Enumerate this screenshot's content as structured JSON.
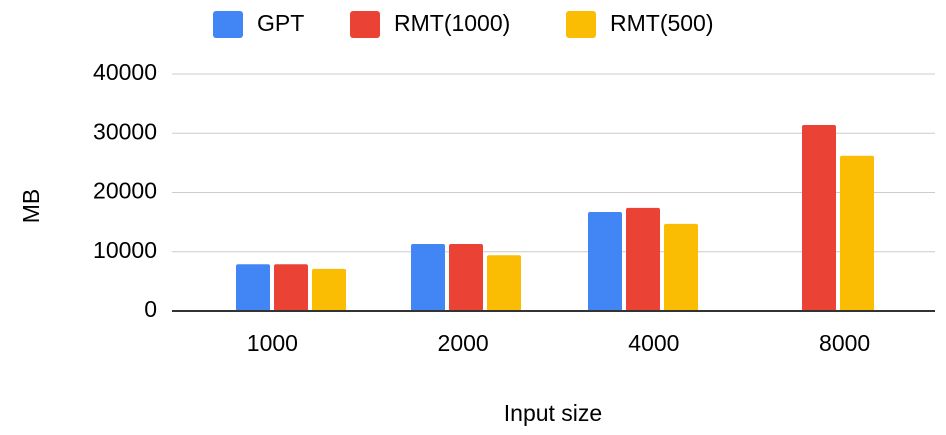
{
  "chart_data": {
    "type": "bar",
    "categories": [
      "1000",
      "2000",
      "4000",
      "8000"
    ],
    "series": [
      {
        "name": "GPT",
        "color": "#4285f4",
        "values": [
          7900,
          11300,
          16700,
          null
        ]
      },
      {
        "name": "RMT(1000)",
        "color": "#ea4335",
        "values": [
          7900,
          11300,
          17400,
          31400
        ]
      },
      {
        "name": "RMT(500)",
        "color": "#fbbc04",
        "values": [
          7100,
          9400,
          14700,
          26200
        ]
      }
    ],
    "xlabel": "Input size",
    "ylabel": "MB",
    "ylim": [
      0,
      40000
    ],
    "yticks": [
      0,
      10000,
      20000,
      30000,
      40000
    ],
    "grid": true,
    "legend": "top",
    "gridline_color": "#cccccc",
    "baseline_color": "#333333"
  }
}
